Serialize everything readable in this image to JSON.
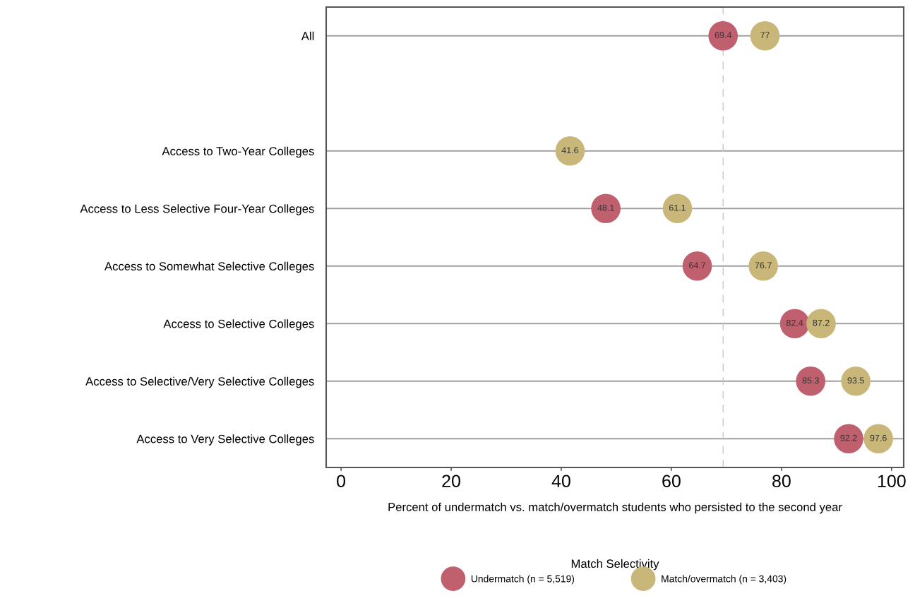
{
  "chart_data": {
    "type": "scatter",
    "orientation": "horizontal",
    "categories": [
      "All",
      null,
      "Access to Two-Year Colleges",
      "Access to Less Selective Four-Year Colleges",
      "Access to Somewhat Selective Colleges",
      "Access to Selective Colleges",
      "Access to Selective/Very Selective Colleges",
      "Access to Very Selective Colleges"
    ],
    "series": [
      {
        "name": "Undermatch (n = 5,519)",
        "color": "#c0606e",
        "values": [
          69.4,
          null,
          null,
          48.1,
          64.7,
          82.4,
          85.3,
          92.2
        ]
      },
      {
        "name": "Match/overmatch (n = 3,403)",
        "color": "#c9b779",
        "values": [
          77,
          null,
          41.6,
          61.1,
          76.7,
          87.2,
          93.5,
          97.6
        ]
      }
    ],
    "xlim": [
      -2.7,
      102.2
    ],
    "xticks": [
      0,
      20,
      40,
      60,
      80,
      100
    ],
    "xlabel": "Percent of undermatch vs. match/overmatch students who persisted to the second year",
    "legend_title": "Match Selectivity",
    "legend": "bottom",
    "ref_lines": [
      {
        "axis": "x",
        "value": 69.4,
        "color": "#c8c8c8",
        "line_style": "dashed"
      }
    ],
    "grid": "y",
    "marker": "circle",
    "data_labels": true
  }
}
